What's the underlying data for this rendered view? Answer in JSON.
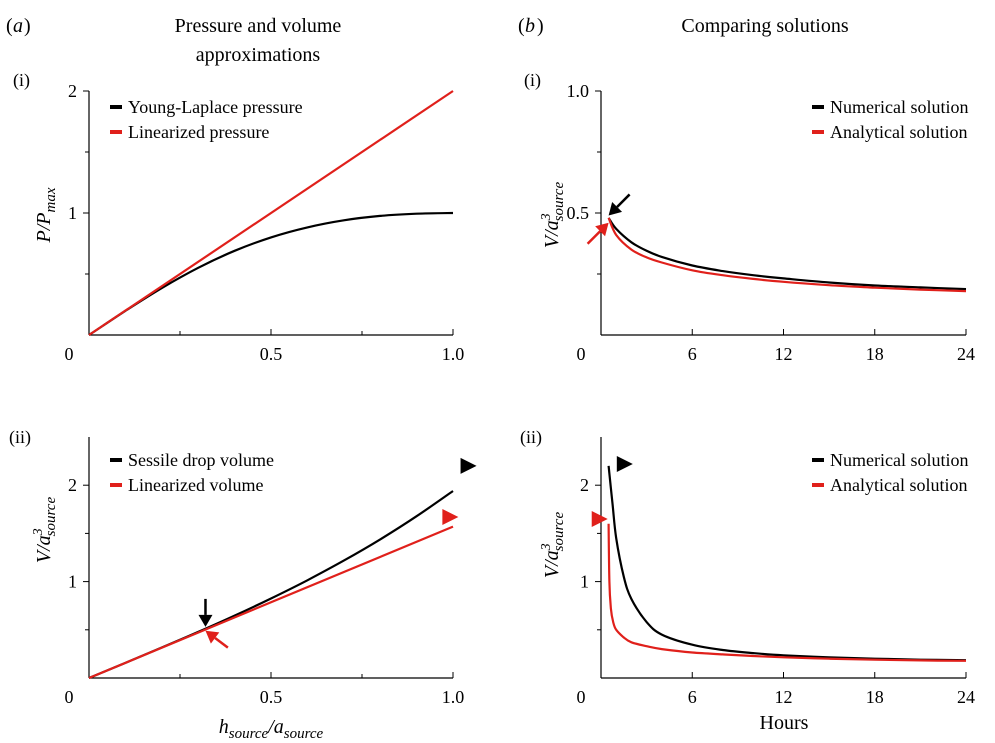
{
  "panels": {
    "a": {
      "letter": "a",
      "title_line1": "Pressure and volume",
      "title_line2": "approximations"
    },
    "b": {
      "letter": "b",
      "title_line1": "Comparing solutions"
    }
  },
  "colors": {
    "black": "#000000",
    "red": "#e0201b"
  },
  "chart_data": [
    {
      "id": "a-i",
      "type": "line",
      "tag": "(i)",
      "ylabel_main": "P",
      "ylabel_sub": "max",
      "xlim": [
        0,
        1.0
      ],
      "ylim": [
        0,
        2
      ],
      "xticks": [
        0,
        0.5,
        1.0
      ],
      "xticklabels": [
        "0",
        "0.5",
        "1.0"
      ],
      "yticks": [
        1,
        2
      ],
      "yticklabels": [
        "1",
        "2"
      ],
      "legend_position": "top-left",
      "series": [
        {
          "name": "Young-Laplace pressure",
          "color": "black",
          "x": [
            0,
            0.1,
            0.2,
            0.3,
            0.4,
            0.5,
            0.6,
            0.7,
            0.8,
            0.9,
            1.0
          ],
          "y": [
            0,
            0.198,
            0.385,
            0.551,
            0.69,
            0.8,
            0.882,
            0.94,
            0.976,
            0.994,
            1.0
          ]
        },
        {
          "name": "Linearized pressure",
          "color": "red",
          "x": [
            0,
            1.0
          ],
          "y": [
            0,
            2.0
          ]
        }
      ]
    },
    {
      "id": "a-ii",
      "type": "line",
      "tag": "(ii)",
      "xlabel_h": "h",
      "xlabel_a": "a",
      "xlabel_sub": "source",
      "ylabel_sub": "source",
      "ylabel_sup": "3",
      "xlim": [
        0,
        1.0
      ],
      "ylim": [
        0,
        2.5
      ],
      "xticks": [
        0,
        0.5,
        1.0
      ],
      "xticklabels": [
        "0",
        "0.5",
        "1.0"
      ],
      "yticks": [
        1,
        2
      ],
      "yticklabels": [
        "1",
        "2"
      ],
      "legend_position": "top-left",
      "series": [
        {
          "name": "Sessile drop volume",
          "color": "black",
          "x": [
            0,
            0.1,
            0.2,
            0.3,
            0.4,
            0.5,
            0.6,
            0.7,
            0.8,
            0.9,
            1.0
          ],
          "y": [
            0,
            0.157,
            0.316,
            0.478,
            0.647,
            0.825,
            1.014,
            1.218,
            1.438,
            1.678,
            1.94
          ]
        },
        {
          "name": "Linearized volume",
          "color": "red",
          "x": [
            0,
            1.0
          ],
          "y": [
            0,
            1.571
          ]
        }
      ],
      "markers": [
        {
          "shape": "triangle",
          "color": "black",
          "x": 1.04,
          "y": 2.2
        },
        {
          "shape": "triangle",
          "color": "red",
          "x": 0.99,
          "y": 1.67
        },
        {
          "shape": "arrow",
          "color": "black",
          "x": 0.32,
          "y": 0.53,
          "from": "top"
        },
        {
          "shape": "arrow",
          "color": "red",
          "x": 0.32,
          "y": 0.49,
          "from": "bottom-right"
        }
      ]
    },
    {
      "id": "b-i",
      "type": "line",
      "tag": "(i)",
      "ylabel_sub": "source",
      "ylabel_sup": "3",
      "xlim": [
        0,
        24
      ],
      "ylim": [
        0,
        1.0
      ],
      "xticks": [
        0,
        6,
        12,
        18,
        24
      ],
      "xticklabels": [
        "0",
        "6",
        "12",
        "18",
        "24"
      ],
      "yticks": [
        0.5,
        1.0
      ],
      "yticklabels": [
        "0.5",
        "1.0"
      ],
      "legend_position": "top-right",
      "series": [
        {
          "name": "Numerical solution",
          "color": "black",
          "x": [
            0.5,
            1,
            2,
            3,
            4,
            6,
            8,
            10,
            12,
            15,
            18,
            21,
            24
          ],
          "y": [
            0.48,
            0.435,
            0.38,
            0.345,
            0.32,
            0.285,
            0.262,
            0.245,
            0.232,
            0.215,
            0.203,
            0.195,
            0.188
          ]
        },
        {
          "name": "Analytical solution",
          "color": "red",
          "x": [
            0.5,
            1,
            2,
            3,
            4,
            6,
            8,
            10,
            12,
            15,
            18,
            21,
            24
          ],
          "y": [
            0.48,
            0.41,
            0.35,
            0.318,
            0.297,
            0.265,
            0.245,
            0.23,
            0.218,
            0.204,
            0.194,
            0.186,
            0.18
          ]
        }
      ],
      "markers": [
        {
          "shape": "arrow",
          "color": "black",
          "x": 0.5,
          "y": 0.49,
          "from": "top-right"
        },
        {
          "shape": "arrow",
          "color": "red",
          "x": 0.5,
          "y": 0.46,
          "from": "bottom-left"
        }
      ]
    },
    {
      "id": "b-ii",
      "type": "line",
      "tag": "(ii)",
      "xlabel": "Hours",
      "ylabel_sub": "source",
      "ylabel_sup": "3",
      "xlim": [
        0,
        24
      ],
      "ylim": [
        0,
        2.5
      ],
      "xticks": [
        0,
        6,
        12,
        18,
        24
      ],
      "xticklabels": [
        "0",
        "6",
        "12",
        "18",
        "24"
      ],
      "yticks": [
        1,
        2
      ],
      "yticklabels": [
        "1",
        "2"
      ],
      "legend_position": "top-right",
      "series": [
        {
          "name": "Numerical solution",
          "color": "black",
          "x": [
            0.5,
            0.75,
            1,
            1.5,
            2,
            3,
            4,
            6,
            8,
            10,
            12,
            15,
            18,
            21,
            24
          ],
          "y": [
            2.2,
            1.82,
            1.45,
            1.05,
            0.82,
            0.58,
            0.45,
            0.345,
            0.29,
            0.258,
            0.235,
            0.215,
            0.2,
            0.19,
            0.185
          ]
        },
        {
          "name": "Analytical solution",
          "color": "red",
          "x": [
            0.5,
            0.55,
            0.65,
            0.8,
            1,
            1.5,
            2,
            3,
            4,
            6,
            8,
            10,
            12,
            15,
            18,
            21,
            24
          ],
          "y": [
            1.6,
            1.0,
            0.72,
            0.58,
            0.5,
            0.42,
            0.37,
            0.33,
            0.3,
            0.265,
            0.245,
            0.228,
            0.215,
            0.2,
            0.19,
            0.183,
            0.178
          ]
        }
      ],
      "markers": [
        {
          "shape": "triangle",
          "color": "black",
          "x": 1.5,
          "y": 2.22
        },
        {
          "shape": "triangle",
          "color": "red",
          "x": -0.15,
          "y": 1.65
        }
      ]
    }
  ]
}
